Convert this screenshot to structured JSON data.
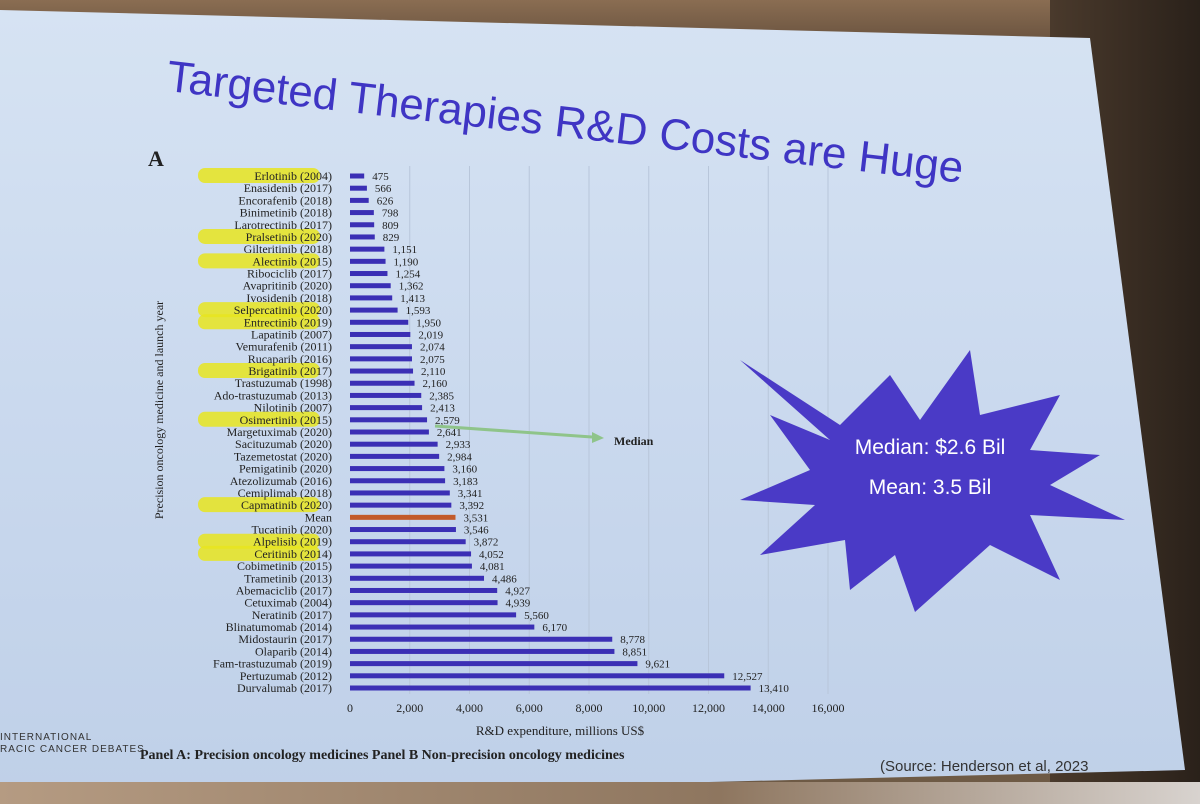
{
  "slide": {
    "title": "Targeted Therapies R&D Costs are Huge",
    "panel_letter": "A",
    "callout_median": "Median: $2.6 Bil",
    "callout_mean": "Mean: 3.5 Bil",
    "footer_logo_line1": "INTERNATIONAL",
    "footer_logo_line2": "RACIC CANCER DEBATES",
    "panel_caption": "Panel A: Precision oncology medicines  Panel B Non-precision oncology medicines",
    "source": "(Source: Henderson et al, 2023"
  },
  "colors": {
    "bar": "#3b2fb5",
    "title": "#3f35c4",
    "highlight": "#e8e51f",
    "median_arrow": "#8fc48a",
    "mean_line": "#c25a2a",
    "starburst": "#4a3ac6"
  },
  "chart_data": {
    "type": "bar",
    "orientation": "horizontal",
    "xlabel": "R&D expenditure, millions US$",
    "ylabel": "Precision oncology medicine and launch year",
    "xlim": [
      0,
      16000
    ],
    "xticks": [
      0,
      2000,
      4000,
      6000,
      8000,
      10000,
      12000,
      14000,
      16000
    ],
    "xtick_labels": [
      "0",
      "2,000",
      "4,000",
      "6,000",
      "8,000",
      "10,000",
      "12,000",
      "14,000",
      "16,000"
    ],
    "median_label": "Median",
    "mean_label": "Mean",
    "bars": [
      {
        "label": "Erlotinib (2004)",
        "value": 475,
        "value_label": "475",
        "highlighted": true
      },
      {
        "label": "Enasidenib (2017)",
        "value": 566,
        "value_label": "566",
        "highlighted": false
      },
      {
        "label": "Encorafenib (2018)",
        "value": 626,
        "value_label": "626",
        "highlighted": false
      },
      {
        "label": "Binimetinib (2018)",
        "value": 798,
        "value_label": "798",
        "highlighted": false
      },
      {
        "label": "Larotrectinib (2017)",
        "value": 809,
        "value_label": "809",
        "highlighted": false
      },
      {
        "label": "Pralsetinib (2020)",
        "value": 829,
        "value_label": "829",
        "highlighted": true
      },
      {
        "label": "Gilteritinib (2018)",
        "value": 1151,
        "value_label": "1,151",
        "highlighted": false
      },
      {
        "label": "Alectinib (2015)",
        "value": 1190,
        "value_label": "1,190",
        "highlighted": true
      },
      {
        "label": "Ribociclib (2017)",
        "value": 1254,
        "value_label": "1,254",
        "highlighted": false
      },
      {
        "label": "Avapritinib (2020)",
        "value": 1362,
        "value_label": "1,362",
        "highlighted": false
      },
      {
        "label": "Ivosidenib (2018)",
        "value": 1413,
        "value_label": "1,413",
        "highlighted": false
      },
      {
        "label": "Selpercatinib (2020)",
        "value": 1593,
        "value_label": "1,593",
        "highlighted": true
      },
      {
        "label": "Entrectinib (2019)",
        "value": 1950,
        "value_label": "1,950",
        "highlighted": true
      },
      {
        "label": "Lapatinib (2007)",
        "value": 2019,
        "value_label": "2,019",
        "highlighted": false
      },
      {
        "label": "Vemurafenib (2011)",
        "value": 2074,
        "value_label": "2,074",
        "highlighted": false
      },
      {
        "label": "Rucaparib (2016)",
        "value": 2075,
        "value_label": "2,075",
        "highlighted": false
      },
      {
        "label": "Brigatinib (2017)",
        "value": 2110,
        "value_label": "2,110",
        "highlighted": true
      },
      {
        "label": "Trastuzumab (1998)",
        "value": 2160,
        "value_label": "2,160",
        "highlighted": false
      },
      {
        "label": "Ado-trastuzumab (2013)",
        "value": 2385,
        "value_label": "2,385",
        "highlighted": false
      },
      {
        "label": "Nilotinib (2007)",
        "value": 2413,
        "value_label": "2,413",
        "highlighted": false
      },
      {
        "label": "Osimertinib (2015)",
        "value": 2579,
        "value_label": "2,579",
        "highlighted": true
      },
      {
        "label": "Margetuximab (2020)",
        "value": 2641,
        "value_label": "2,641",
        "highlighted": false
      },
      {
        "label": "Sacituzumab (2020)",
        "value": 2933,
        "value_label": "2,933",
        "highlighted": false
      },
      {
        "label": "Tazemetostat (2020)",
        "value": 2984,
        "value_label": "2,984",
        "highlighted": false
      },
      {
        "label": "Pemigatinib (2020)",
        "value": 3160,
        "value_label": "3,160",
        "highlighted": false
      },
      {
        "label": "Atezolizumab (2016)",
        "value": 3183,
        "value_label": "3,183",
        "highlighted": false
      },
      {
        "label": "Cemiplimab (2018)",
        "value": 3341,
        "value_label": "3,341",
        "highlighted": false
      },
      {
        "label": "Capmatinib (2020)",
        "value": 3392,
        "value_label": "3,392",
        "highlighted": true
      },
      {
        "label": "Mean",
        "value": 3531,
        "value_label": "3,531",
        "highlighted": false,
        "is_mean": true
      },
      {
        "label": "Tucatinib (2020)",
        "value": 3546,
        "value_label": "3,546",
        "highlighted": false
      },
      {
        "label": "Alpelisib (2019)",
        "value": 3872,
        "value_label": "3,872",
        "highlighted": true
      },
      {
        "label": "Ceritinib (2014)",
        "value": 4052,
        "value_label": "4,052",
        "highlighted": true
      },
      {
        "label": "Cobimetinib (2015)",
        "value": 4081,
        "value_label": "4,081",
        "highlighted": false
      },
      {
        "label": "Trametinib (2013)",
        "value": 4486,
        "value_label": "4,486",
        "highlighted": false
      },
      {
        "label": "Abemaciclib (2017)",
        "value": 4927,
        "value_label": "4,927",
        "highlighted": false
      },
      {
        "label": "Cetuximab (2004)",
        "value": 4939,
        "value_label": "4,939",
        "highlighted": false
      },
      {
        "label": "Neratinib (2017)",
        "value": 5560,
        "value_label": "5,560",
        "highlighted": false
      },
      {
        "label": "Blinatumomab (2014)",
        "value": 6170,
        "value_label": "6,170",
        "highlighted": false
      },
      {
        "label": "Midostaurin (2017)",
        "value": 8778,
        "value_label": "8,778",
        "highlighted": false
      },
      {
        "label": "Olaparib (2014)",
        "value": 8851,
        "value_label": "8,851",
        "highlighted": false
      },
      {
        "label": "Fam-trastuzumab (2019)",
        "value": 9621,
        "value_label": "9,621",
        "highlighted": false
      },
      {
        "label": "Pertuzumab (2012)",
        "value": 12527,
        "value_label": "12,527",
        "highlighted": false
      },
      {
        "label": "Durvalumab (2017)",
        "value": 13410,
        "value_label": "13,410",
        "highlighted": false
      }
    ]
  }
}
